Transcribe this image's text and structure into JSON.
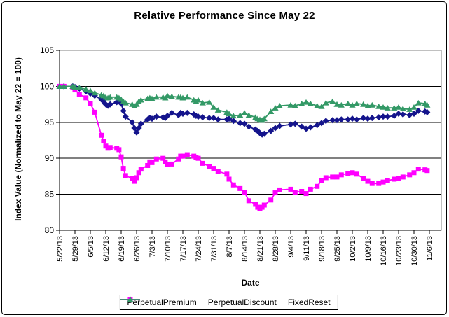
{
  "window": {
    "background": "#ffffff",
    "border_color": "#000000"
  },
  "chart_data": {
    "type": "line",
    "title": "Relative Performance Since May 22",
    "xlabel": "Date",
    "ylabel": "Index Value (Normalized to May 22 = 100)",
    "ylim": [
      80,
      105
    ],
    "y_ticks": [
      80,
      85,
      90,
      95,
      100,
      105
    ],
    "grid": "horizontal",
    "legend_position": "bottom",
    "x_unit": "calendar days since 5/22/13",
    "x_tick_days": [
      0,
      7,
      14,
      21,
      28,
      35,
      42,
      49,
      56,
      63,
      70,
      77,
      84,
      91,
      98,
      105,
      112,
      119,
      126,
      133,
      140,
      147,
      154,
      161,
      168
    ],
    "x_tick_labels": [
      "5/22/13",
      "5/29/13",
      "6/5/13",
      "6/12/13",
      "6/19/13",
      "6/26/13",
      "7/3/13",
      "7/10/13",
      "7/17/13",
      "7/24/13",
      "7/31/13",
      "8/7/13",
      "8/14/13",
      "8/21/13",
      "8/28/13",
      "9/4/13",
      "9/11/13",
      "9/18/13",
      "9/25/13",
      "10/2/13",
      "10/9/13",
      "10/16/13",
      "10/23/13",
      "10/30/13",
      "11/6/13"
    ],
    "x_days": [
      0,
      2,
      6,
      7,
      9,
      12,
      14,
      16,
      19,
      20,
      21,
      22,
      23,
      26,
      27,
      28,
      29,
      30,
      33,
      34,
      35,
      36,
      37,
      40,
      41,
      42,
      44,
      47,
      48,
      49,
      51,
      54,
      55,
      56,
      58,
      61,
      62,
      63,
      65,
      68,
      70,
      72,
      76,
      77,
      79,
      82,
      84,
      86,
      89,
      90,
      91,
      92,
      93,
      96,
      98,
      100,
      105,
      107,
      110,
      112,
      114,
      117,
      119,
      121,
      124,
      126,
      128,
      131,
      133,
      135,
      138,
      140,
      142,
      145,
      147,
      149,
      152,
      154,
      156,
      159,
      161,
      163,
      166,
      167
    ],
    "series": [
      {
        "name": "PerpetualPremium",
        "color": "#14148c",
        "marker": "diamond",
        "values": [
          100.0,
          100.0,
          100.0,
          99.9,
          99.7,
          99.3,
          99.0,
          98.7,
          98.2,
          97.9,
          97.5,
          97.3,
          97.5,
          97.8,
          98.0,
          97.6,
          96.6,
          95.8,
          95.0,
          94.2,
          93.6,
          94.2,
          94.8,
          95.4,
          95.6,
          95.5,
          95.8,
          95.7,
          95.6,
          95.9,
          96.3,
          96.0,
          96.3,
          96.2,
          96.3,
          96.1,
          95.9,
          95.8,
          95.7,
          95.6,
          95.6,
          95.4,
          95.4,
          95.5,
          95.2,
          94.9,
          94.8,
          94.4,
          94.0,
          93.8,
          93.5,
          93.3,
          93.4,
          93.8,
          94.2,
          94.5,
          94.7,
          94.8,
          94.4,
          94.1,
          94.3,
          94.6,
          94.9,
          95.2,
          95.3,
          95.3,
          95.4,
          95.4,
          95.5,
          95.4,
          95.6,
          95.5,
          95.6,
          95.7,
          95.8,
          95.8,
          95.9,
          96.2,
          96.1,
          96.0,
          96.2,
          96.6,
          96.5,
          96.4
        ]
      },
      {
        "name": "PerpetualDiscount",
        "color": "#ff00ff",
        "marker": "square",
        "values": [
          100.0,
          100.0,
          99.9,
          99.5,
          98.9,
          98.4,
          97.6,
          96.4,
          93.2,
          92.4,
          91.7,
          91.4,
          91.5,
          91.4,
          91.2,
          90.2,
          88.6,
          87.6,
          87.2,
          86.8,
          87.3,
          88.0,
          88.5,
          89.0,
          89.5,
          89.4,
          89.9,
          90.0,
          89.5,
          89.1,
          89.2,
          89.9,
          90.3,
          90.3,
          90.5,
          90.3,
          90.1,
          90.0,
          89.3,
          88.9,
          88.6,
          88.2,
          87.8,
          87.1,
          86.3,
          85.8,
          85.3,
          84.1,
          83.6,
          83.2,
          83.0,
          83.2,
          83.5,
          84.2,
          85.2,
          85.6,
          85.7,
          85.3,
          85.4,
          85.1,
          85.7,
          86.1,
          86.9,
          87.3,
          87.4,
          87.4,
          87.7,
          87.9,
          88.0,
          87.8,
          87.2,
          86.8,
          86.5,
          86.5,
          86.7,
          86.9,
          87.1,
          87.2,
          87.4,
          87.7,
          88.0,
          88.5,
          88.4,
          88.3
        ]
      },
      {
        "name": "FixedReset",
        "color": "#339966",
        "marker": "triangle",
        "values": [
          100.0,
          100.0,
          100.0,
          99.9,
          99.8,
          99.6,
          99.4,
          99.1,
          98.8,
          98.7,
          98.5,
          98.4,
          98.5,
          98.5,
          98.4,
          98.2,
          97.9,
          97.7,
          97.5,
          97.3,
          97.5,
          97.9,
          98.1,
          98.3,
          98.4,
          98.3,
          98.5,
          98.5,
          98.4,
          98.7,
          98.6,
          98.5,
          98.5,
          98.4,
          98.5,
          98.1,
          97.9,
          98.1,
          97.7,
          97.8,
          97.1,
          96.7,
          96.4,
          96.2,
          95.9,
          96.0,
          96.3,
          96.0,
          95.7,
          95.5,
          95.4,
          95.3,
          95.5,
          96.5,
          97.0,
          97.3,
          97.4,
          97.3,
          97.6,
          97.8,
          97.6,
          97.3,
          97.2,
          97.7,
          97.9,
          97.5,
          97.4,
          97.6,
          97.4,
          97.6,
          97.5,
          97.3,
          97.4,
          97.2,
          97.1,
          97.0,
          97.0,
          97.1,
          96.9,
          96.8,
          97.1,
          97.7,
          97.6,
          97.4
        ]
      }
    ],
    "plot_style": {
      "plot_border_color": "#808080",
      "gridline_color": "#000000",
      "axis_color": "#000000",
      "background": "#ffffff"
    }
  }
}
